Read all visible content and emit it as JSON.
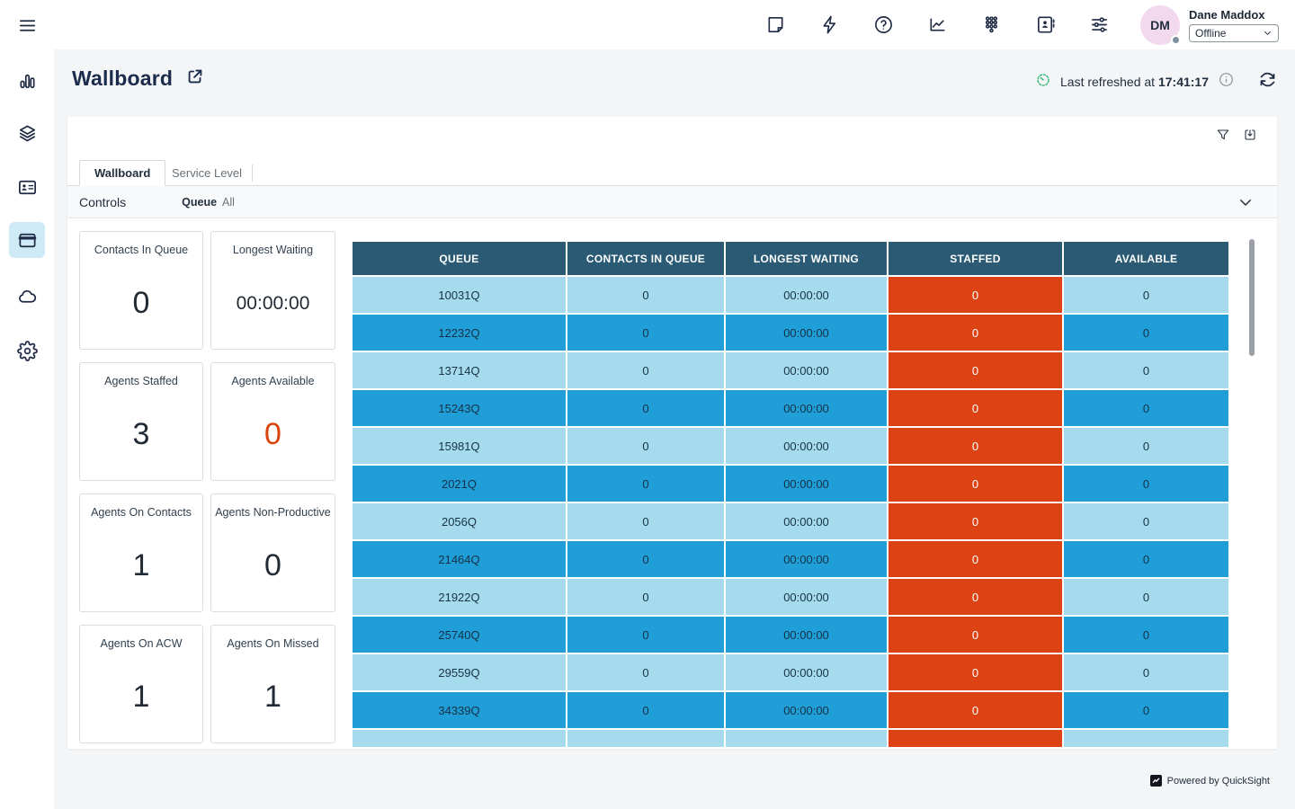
{
  "topbar": {
    "icons": [
      "sticky-note-icon",
      "lightning-icon",
      "help-icon",
      "metrics-icon",
      "dialpad-icon",
      "directory-icon",
      "sliders-icon"
    ],
    "user": {
      "name": "Dane Maddox",
      "initials": "DM",
      "status": "Offline"
    }
  },
  "sidebar": {
    "icons": [
      "menu-icon",
      "bar-chart-icon",
      "layers-icon",
      "id-card-icon",
      "browser-window-icon",
      "cloud-icon",
      "gear-icon"
    ],
    "selected": "browser-window-icon"
  },
  "header": {
    "title": "Wallboard",
    "refresh_prefix": "Last refreshed at",
    "refresh_time": "17:41:17"
  },
  "card": {
    "tabs": [
      {
        "label": "Wallboard",
        "active": true
      },
      {
        "label": "Service Level",
        "active": false
      }
    ],
    "controls_label": "Controls",
    "queue_label": "Queue",
    "queue_value": "All"
  },
  "kpis": [
    {
      "label": "Contacts In Queue",
      "value": "0"
    },
    {
      "label": "Longest Waiting",
      "value": "00:00:00"
    },
    {
      "label": "Agents Staffed",
      "value": "3"
    },
    {
      "label": "Agents Available",
      "value": "0",
      "accent": "#d9420b"
    },
    {
      "label": "Agents On Contacts",
      "value": "1"
    },
    {
      "label": "Agents Non-Productive",
      "value": "0"
    },
    {
      "label": "Agents On ACW",
      "value": "1"
    },
    {
      "label": "Agents On Missed",
      "value": "1"
    }
  ],
  "table": {
    "headers": [
      "QUEUE",
      "CONTACTS IN QUEUE",
      "LONGEST WAITING",
      "STAFFED",
      "AVAILABLE"
    ],
    "rows": [
      {
        "queue": "10031Q",
        "contacts_in_queue": "0",
        "longest_waiting": "00:00:00",
        "staffed": "0",
        "available": "0"
      },
      {
        "queue": "12232Q",
        "contacts_in_queue": "0",
        "longest_waiting": "00:00:00",
        "staffed": "0",
        "available": "0"
      },
      {
        "queue": "13714Q",
        "contacts_in_queue": "0",
        "longest_waiting": "00:00:00",
        "staffed": "0",
        "available": "0"
      },
      {
        "queue": "15243Q",
        "contacts_in_queue": "0",
        "longest_waiting": "00:00:00",
        "staffed": "0",
        "available": "0"
      },
      {
        "queue": "15981Q",
        "contacts_in_queue": "0",
        "longest_waiting": "00:00:00",
        "staffed": "0",
        "available": "0"
      },
      {
        "queue": "2021Q",
        "contacts_in_queue": "0",
        "longest_waiting": "00:00:00",
        "staffed": "0",
        "available": "0"
      },
      {
        "queue": "2056Q",
        "contacts_in_queue": "0",
        "longest_waiting": "00:00:00",
        "staffed": "0",
        "available": "0"
      },
      {
        "queue": "21464Q",
        "contacts_in_queue": "0",
        "longest_waiting": "00:00:00",
        "staffed": "0",
        "available": "0"
      },
      {
        "queue": "21922Q",
        "contacts_in_queue": "0",
        "longest_waiting": "00:00:00",
        "staffed": "0",
        "available": "0"
      },
      {
        "queue": "25740Q",
        "contacts_in_queue": "0",
        "longest_waiting": "00:00:00",
        "staffed": "0",
        "available": "0"
      },
      {
        "queue": "29559Q",
        "contacts_in_queue": "0",
        "longest_waiting": "00:00:00",
        "staffed": "0",
        "available": "0"
      },
      {
        "queue": "34339Q",
        "contacts_in_queue": "0",
        "longest_waiting": "00:00:00",
        "staffed": "0",
        "available": "0"
      },
      {
        "queue": "",
        "contacts_in_queue": "",
        "longest_waiting": "",
        "staffed": "",
        "available": ""
      }
    ]
  },
  "footer": {
    "powered_by": "Powered by QuickSight"
  },
  "colors": {
    "table_header": "#2a5a74",
    "row_light": "#a6dbee",
    "row_blue": "#1f9ed8",
    "staffed_orange": "#dc4213",
    "kpi_accent_orange": "#d9420b",
    "refresh_green": "#2bb573",
    "sidebar_selected_bg": "#cfeaf7",
    "avatar_bg": "#f2d9ed"
  }
}
